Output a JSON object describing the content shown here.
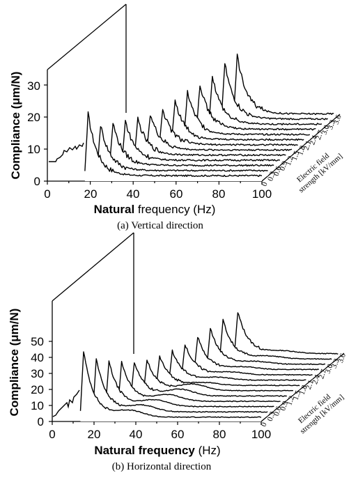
{
  "chart_data": [
    {
      "type": "line",
      "panel": "a",
      "caption": "(a) Vertical direction",
      "xlabel_bold": "Natural",
      "xlabel_rest": " frequency (Hz)",
      "ylabel": "Compliance (μm/N)",
      "zlabel_line1": "Electric field",
      "zlabel_line2": "strength [kV/mm]",
      "xticks": [
        "0",
        "20",
        "40",
        "60",
        "80",
        "100"
      ],
      "yticks": [
        "0",
        "10",
        "20",
        "30"
      ],
      "zticks": [
        "0",
        "0.3",
        "0.6",
        "0.9",
        "1.2",
        "1.5",
        "1.8",
        "2.1",
        "2.4",
        "2.7",
        "3.0",
        "3.3",
        "3.6"
      ],
      "xlim": [
        0,
        100
      ],
      "ylim": [
        0,
        30
      ],
      "series_peaks": [
        {
          "peak_freq": 19,
          "peak_value": 21
        },
        {
          "peak_freq": 22,
          "peak_value": 16
        },
        {
          "peak_freq": 25,
          "peak_value": 15
        },
        {
          "peak_freq": 28,
          "peak_value": 14
        },
        {
          "peak_freq": 31,
          "peak_value": 13
        },
        {
          "peak_freq": 34,
          "peak_value": 13
        },
        {
          "peak_freq": 37,
          "peak_value": 13
        },
        {
          "peak_freq": 40,
          "peak_value": 14
        },
        {
          "peak_freq": 43,
          "peak_value": 15
        },
        {
          "peak_freq": 46,
          "peak_value": 16
        },
        {
          "peak_freq": 49,
          "peak_value": 17
        },
        {
          "peak_freq": 52,
          "peak_value": 19
        },
        {
          "peak_freq": 55,
          "peak_value": 20
        }
      ]
    },
    {
      "type": "line",
      "panel": "b",
      "caption": "(b) Horizontal direction",
      "xlabel_bold": "Natural frequency",
      "xlabel_rest": " (Hz)",
      "ylabel": "Compliance (μm/N)",
      "zlabel_line1": "Electric field",
      "zlabel_line2": "strength [kV/mm]",
      "xticks": [
        "0",
        "20",
        "40",
        "60",
        "80",
        "100"
      ],
      "yticks": [
        "0",
        "10",
        "20",
        "30",
        "40",
        "50"
      ],
      "zticks": [
        "0",
        "0.3",
        "0.6",
        "0.9",
        "1.2",
        "1.5",
        "1.8",
        "2.1",
        "2.4",
        "2.7",
        "3.0",
        "3.3",
        "3.6"
      ],
      "xlim": [
        0,
        100
      ],
      "ylim": [
        0,
        50
      ],
      "series_peaks": [
        {
          "peak_freq": 15,
          "peak_value": 44
        },
        {
          "peak_freq": 18,
          "peak_value": 36
        },
        {
          "peak_freq": 21,
          "peak_value": 31
        },
        {
          "peak_freq": 24,
          "peak_value": 27
        },
        {
          "peak_freq": 27,
          "peak_value": 24
        },
        {
          "peak_freq": 30,
          "peak_value": 22
        },
        {
          "peak_freq": 33,
          "peak_value": 21
        },
        {
          "peak_freq": 36,
          "peak_value": 21
        },
        {
          "peak_freq": 39,
          "peak_value": 22
        },
        {
          "peak_freq": 42,
          "peak_value": 23
        },
        {
          "peak_freq": 45,
          "peak_value": 25
        },
        {
          "peak_freq": 48,
          "peak_value": 27
        },
        {
          "peak_freq": 52,
          "peak_value": 29
        }
      ]
    }
  ]
}
